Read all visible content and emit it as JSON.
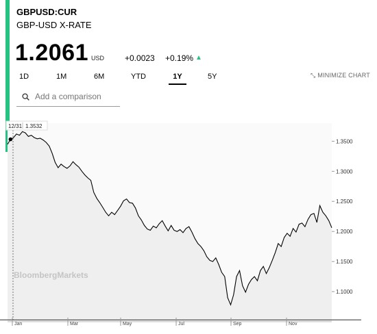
{
  "quote": {
    "ticker": "GBPUSD:CUR",
    "name": "GBP-USD X-RATE",
    "price": "1.2061",
    "currency": "USD",
    "change": "+0.0023",
    "change_pct": "+0.19%",
    "direction_icon": "up-triangle-icon",
    "accent_color": "#26c281"
  },
  "tabs": [
    {
      "label": "1D",
      "active": false
    },
    {
      "label": "1M",
      "active": false
    },
    {
      "label": "6M",
      "active": false
    },
    {
      "label": "YTD",
      "active": false
    },
    {
      "label": "1Y",
      "active": true
    },
    {
      "label": "5Y",
      "active": false
    }
  ],
  "minimize": {
    "label": "MINIMIZE CHART",
    "icon": "collapse-arrows-icon"
  },
  "search": {
    "placeholder": "Add a comparison",
    "icon": "search-icon"
  },
  "watermark": "BloombergMarkets",
  "hover": {
    "date": "12/31",
    "value": "1.3532"
  },
  "chart_data": {
    "type": "line",
    "ylim": [
      1.05,
      1.38
    ],
    "y_ticks": [
      "1.3500",
      "1.3000",
      "1.2500",
      "1.2000",
      "1.1500",
      "1.1000"
    ],
    "x_ticks": [
      "Jan",
      "Mar",
      "May",
      "Jul",
      "Sep",
      "Nov"
    ],
    "series": [
      {
        "values": [
          1.345,
          1.3532,
          1.356,
          1.362,
          1.36,
          1.366,
          1.364,
          1.358,
          1.36,
          1.356,
          1.354,
          1.355,
          1.352,
          1.348,
          1.342,
          1.33,
          1.315,
          1.306,
          1.312,
          1.308,
          1.305,
          1.309,
          1.316,
          1.311,
          1.307,
          1.3,
          1.294,
          1.289,
          1.285,
          1.265,
          1.255,
          1.248,
          1.24,
          1.232,
          1.226,
          1.232,
          1.228,
          1.235,
          1.242,
          1.251,
          1.254,
          1.248,
          1.247,
          1.239,
          1.226,
          1.219,
          1.21,
          1.204,
          1.202,
          1.209,
          1.206,
          1.213,
          1.218,
          1.209,
          1.201,
          1.21,
          1.202,
          1.2,
          1.203,
          1.198,
          1.205,
          1.208,
          1.199,
          1.188,
          1.18,
          1.175,
          1.168,
          1.158,
          1.152,
          1.15,
          1.156,
          1.145,
          1.132,
          1.125,
          1.09,
          1.078,
          1.095,
          1.125,
          1.135,
          1.11,
          1.099,
          1.112,
          1.12,
          1.125,
          1.118,
          1.135,
          1.142,
          1.13,
          1.14,
          1.152,
          1.165,
          1.18,
          1.175,
          1.19,
          1.197,
          1.192,
          1.205,
          1.199,
          1.212,
          1.214,
          1.208,
          1.22,
          1.228,
          1.23,
          1.215,
          1.243,
          1.232,
          1.226,
          1.218,
          1.2061
        ]
      }
    ],
    "line_color": "#000000",
    "area_color": "#efefef",
    "grid": false,
    "baseline_value": 1.053
  }
}
